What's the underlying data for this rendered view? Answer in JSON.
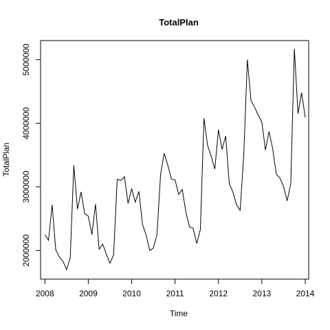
{
  "chart_data": {
    "type": "line",
    "title": "TotalPlan",
    "xlabel": "Time",
    "ylabel": "TotalPlan",
    "xlim": [
      2007.9,
      2014.08
    ],
    "ylim": [
      1550000,
      5300000
    ],
    "x_ticks": [
      2008,
      2009,
      2010,
      2011,
      2012,
      2013,
      2014
    ],
    "x_tick_labels": [
      "2008",
      "2009",
      "2010",
      "2011",
      "2012",
      "2013",
      "2014"
    ],
    "y_ticks": [
      2000000,
      3000000,
      4000000,
      5000000
    ],
    "y_tick_labels": [
      "2000000",
      "3000000",
      "4000000",
      "5000000"
    ],
    "grid": false,
    "legend": "none",
    "series": [
      {
        "color": "#000000",
        "x_start": 2008,
        "frequency": 12,
        "values": [
          2250000,
          2160000,
          2720000,
          2010000,
          1900000,
          1830000,
          1700000,
          1880000,
          3340000,
          2650000,
          2920000,
          2580000,
          2540000,
          2250000,
          2730000,
          2020000,
          2100000,
          1940000,
          1800000,
          1930000,
          3120000,
          3100000,
          3160000,
          2740000,
          2970000,
          2760000,
          2930000,
          2410000,
          2240000,
          2000000,
          2040000,
          2250000,
          3200000,
          3530000,
          3340000,
          3120000,
          3110000,
          2880000,
          2960000,
          2600000,
          2370000,
          2350000,
          2110000,
          2330000,
          4080000,
          3650000,
          3480000,
          3280000,
          3900000,
          3590000,
          3800000,
          3050000,
          2920000,
          2720000,
          2630000,
          3500000,
          5000000,
          4360000,
          4250000,
          4130000,
          4020000,
          3580000,
          3870000,
          3600000,
          3200000,
          3140000,
          3010000,
          2780000,
          3050000,
          5170000,
          4150000,
          4480000,
          4090000
        ]
      }
    ]
  }
}
